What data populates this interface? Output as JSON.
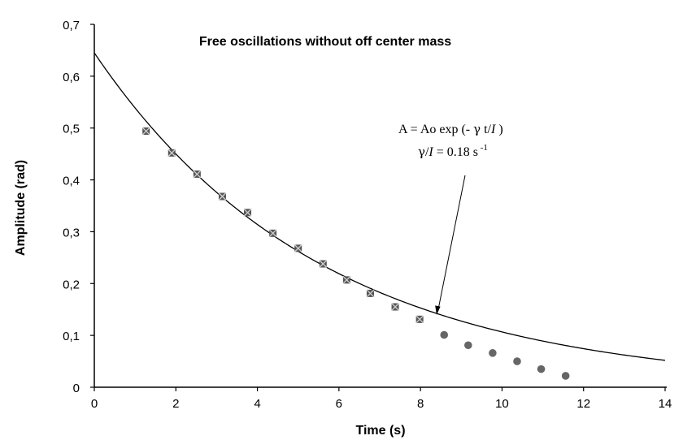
{
  "chart_data": {
    "type": "scatter",
    "title": "Free oscillations without off center mass",
    "xlabel": "Time (s)",
    "ylabel": "Amplitude (rad)",
    "xlim": [
      0,
      14
    ],
    "ylim": [
      0,
      0.7
    ],
    "x_ticks": [
      "0",
      "2",
      "4",
      "6",
      "8",
      "10",
      "12",
      "14"
    ],
    "y_ticks": [
      "0",
      "0,1",
      "0,2",
      "0,3",
      "0,4",
      "0,5",
      "0,6",
      "0,7"
    ],
    "grid": false,
    "series": [
      {
        "marker": "x-square",
        "color": "#555555",
        "x": [
          1.27,
          1.9,
          2.52,
          3.14,
          3.76,
          4.38,
          5.0,
          5.61,
          6.19,
          6.77,
          7.38,
          7.98
        ],
        "y": [
          0.494,
          0.452,
          0.411,
          0.368,
          0.337,
          0.297,
          0.268,
          0.238,
          0.207,
          0.181,
          0.155,
          0.131
        ]
      },
      {
        "marker": "circle",
        "color": "#666666",
        "x": [
          8.58,
          9.17,
          9.77,
          10.37,
          10.96,
          11.56
        ],
        "y": [
          0.101,
          0.081,
          0.066,
          0.05,
          0.035,
          0.022
        ]
      },
      {
        "type": "line",
        "color": "#000000",
        "function": "A0*exp(-k*t)",
        "A0": 0.645,
        "k": 0.18
      }
    ],
    "annotations": {
      "line1_a": "A = Ao exp (- ",
      "line1_gamma": "γ",
      "line1_b": " t/",
      "line1_i": "I",
      "line1_c": " )",
      "line2_gamma": "γ",
      "line2_a": "/",
      "line2_i": "I",
      "line2_b": " = 0.18 s",
      "line2_sup": " -1"
    }
  }
}
